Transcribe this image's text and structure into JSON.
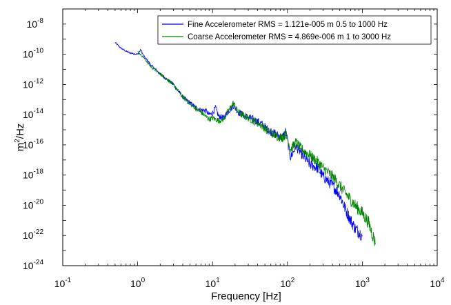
{
  "chart_data": {
    "type": "line",
    "xlabel": "Frequency [Hz]",
    "ylabel_base": "m",
    "ylabel_sup": "2",
    "ylabel_tail": "/Hz",
    "xscale": "log",
    "yscale": "log",
    "xlim": [
      0.1,
      10000
    ],
    "ylim": [
      1e-24,
      1e-07
    ],
    "grid": false,
    "legend_position": "top-right",
    "x_ticks": [
      {
        "base": "10",
        "exp": "-1",
        "value": 0.1
      },
      {
        "base": "10",
        "exp": "0",
        "value": 1
      },
      {
        "base": "10",
        "exp": "1",
        "value": 10
      },
      {
        "base": "10",
        "exp": "2",
        "value": 100
      },
      {
        "base": "10",
        "exp": "3",
        "value": 1000
      },
      {
        "base": "10",
        "exp": "4",
        "value": 10000
      }
    ],
    "y_ticks": [
      {
        "base": "10",
        "exp": "-8",
        "value": 1e-08
      },
      {
        "base": "10",
        "exp": "-10",
        "value": 1e-10
      },
      {
        "base": "10",
        "exp": "-12",
        "value": 1e-12
      },
      {
        "base": "10",
        "exp": "-14",
        "value": 1e-14
      },
      {
        "base": "10",
        "exp": "-16",
        "value": 1e-16
      },
      {
        "base": "10",
        "exp": "-18",
        "value": 1e-18
      },
      {
        "base": "10",
        "exp": "-20",
        "value": 1e-20
      },
      {
        "base": "10",
        "exp": "-22",
        "value": 1e-22
      },
      {
        "base": "10",
        "exp": "-24",
        "value": 1e-24
      }
    ],
    "series": [
      {
        "name": "Fine Accelerometer RMS = 1.121e-005 m 0.5 to 1000 Hz",
        "color": "#0000ff",
        "points": [
          [
            0.5,
            6e-10
          ],
          [
            0.6,
            2.5e-10
          ],
          [
            0.7,
            1.6e-10
          ],
          [
            0.8,
            1.2e-10
          ],
          [
            0.9,
            1.1e-10
          ],
          [
            1.0,
            1e-10
          ],
          [
            1.1,
            2e-10
          ],
          [
            1.2,
            8e-11
          ],
          [
            1.5,
            2e-11
          ],
          [
            2.0,
            5e-12
          ],
          [
            3.0,
            1e-12
          ],
          [
            4.0,
            1.5e-13
          ],
          [
            5.0,
            6e-14
          ],
          [
            6.0,
            3e-14
          ],
          [
            7.0,
            2e-14
          ],
          [
            8.0,
            2e-14
          ],
          [
            9.0,
            1e-14
          ],
          [
            10.0,
            1.2e-14
          ],
          [
            11.0,
            3e-14
          ],
          [
            12.0,
            8e-15
          ],
          [
            14.0,
            6e-15
          ],
          [
            16.0,
            1.5e-14
          ],
          [
            19.0,
            4e-14
          ],
          [
            22.0,
            1.5e-14
          ],
          [
            27.0,
            8e-15
          ],
          [
            35.0,
            5e-15
          ],
          [
            45.0,
            2.5e-15
          ],
          [
            55.0,
            1e-15
          ],
          [
            70.0,
            5e-16
          ],
          [
            85.0,
            3e-16
          ],
          [
            95.0,
            8e-16
          ],
          [
            100.0,
            2e-16
          ],
          [
            110.0,
            1.5e-17
          ],
          [
            130.0,
            8e-17
          ],
          [
            150.0,
            3e-17
          ],
          [
            200.0,
            5e-18
          ],
          [
            250.0,
            3e-18
          ],
          [
            300.0,
            8e-19
          ],
          [
            400.0,
            2e-19
          ],
          [
            500.0,
            5e-20
          ],
          [
            600.0,
            5e-21
          ],
          [
            700.0,
            1e-21
          ],
          [
            800.0,
            3e-22
          ],
          [
            1000.0,
            1e-22
          ]
        ]
      },
      {
        "name": "Coarse Accelerometer RMS = 4.869e-006 m 1 to 3000 Hz",
        "color": "#008000",
        "points": [
          [
            1.0,
            1.5e-10
          ],
          [
            1.2,
            6e-11
          ],
          [
            1.5,
            1.5e-11
          ],
          [
            2.0,
            5e-12
          ],
          [
            3.0,
            1e-12
          ],
          [
            4.0,
            1.5e-13
          ],
          [
            5.0,
            5e-14
          ],
          [
            6.0,
            2.5e-14
          ],
          [
            7.0,
            1.5e-14
          ],
          [
            8.0,
            8e-15
          ],
          [
            9.0,
            5e-15
          ],
          [
            10.0,
            6e-15
          ],
          [
            12.0,
            4e-15
          ],
          [
            14.0,
            5e-15
          ],
          [
            16.0,
            1.5e-14
          ],
          [
            19.0,
            6e-14
          ],
          [
            22.0,
            1.5e-14
          ],
          [
            27.0,
            8e-15
          ],
          [
            35.0,
            4e-15
          ],
          [
            45.0,
            2e-15
          ],
          [
            55.0,
            8e-16
          ],
          [
            70.0,
            4e-16
          ],
          [
            85.0,
            3e-16
          ],
          [
            95.0,
            5e-16
          ],
          [
            100.0,
            3e-16
          ],
          [
            110.0,
            5e-17
          ],
          [
            130.0,
            1.5e-16
          ],
          [
            150.0,
            6e-17
          ],
          [
            200.0,
            2e-17
          ],
          [
            250.0,
            8e-18
          ],
          [
            300.0,
            3e-18
          ],
          [
            400.0,
            8e-19
          ],
          [
            500.0,
            2e-19
          ],
          [
            600.0,
            6e-20
          ],
          [
            800.0,
            1e-20
          ],
          [
            1000.0,
            3e-21
          ],
          [
            1200.0,
            8e-22
          ],
          [
            1500.0,
            3e-23
          ]
        ]
      }
    ]
  }
}
